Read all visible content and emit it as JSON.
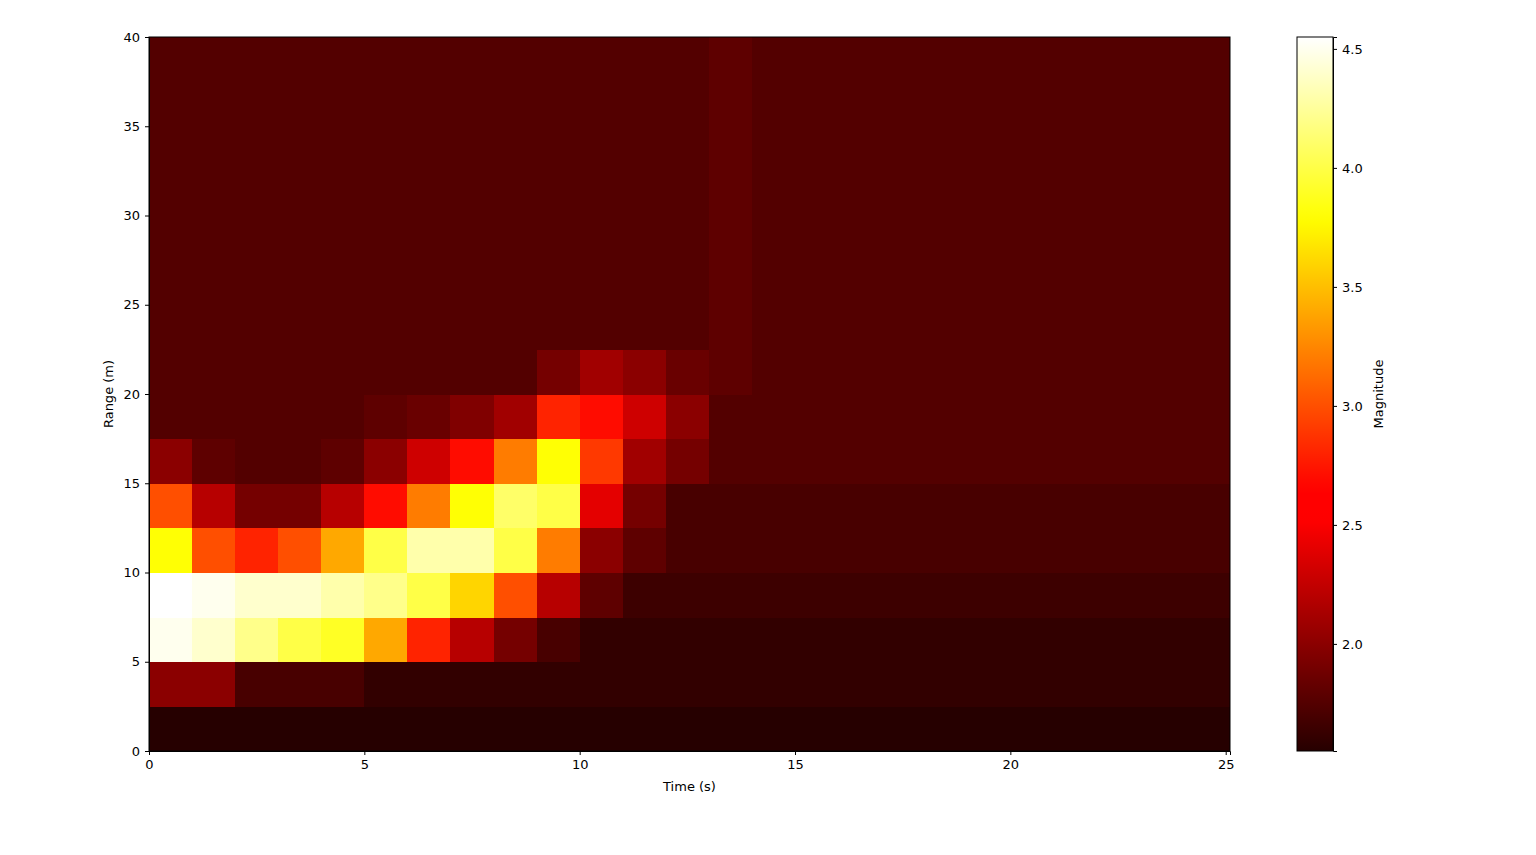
{
  "chart_data": {
    "type": "heatmap",
    "x_label": "Time (s)",
    "y_label": "Range (m)",
    "xlim": [
      0,
      25.1
    ],
    "ylim": [
      0,
      40
    ],
    "xticks": [
      0,
      5,
      10,
      15,
      20,
      25
    ],
    "yticks": [
      0,
      5,
      10,
      15,
      20,
      25,
      30,
      35,
      40
    ],
    "x_edges": [
      0,
      1,
      2,
      3,
      4,
      5,
      6,
      7,
      8,
      9,
      10,
      11,
      12,
      13,
      14,
      15,
      16,
      17,
      18,
      19,
      20,
      21,
      22,
      23,
      24,
      25.1
    ],
    "y_edges": [
      0,
      2.5,
      5,
      7.5,
      10,
      12.5,
      15,
      17.5,
      20,
      22.5,
      25,
      27.5,
      30,
      32.5,
      35,
      37.5,
      40
    ],
    "z": [
      [
        1.55,
        1.55,
        1.55,
        1.55,
        1.55,
        1.55,
        1.55,
        1.55,
        1.55,
        1.55,
        1.55,
        1.55,
        1.55,
        1.55,
        1.55,
        1.55,
        1.55,
        1.55,
        1.55,
        1.55,
        1.55,
        1.55,
        1.55,
        1.55,
        1.55
      ],
      [
        2.0,
        2.0,
        1.7,
        1.7,
        1.7,
        1.6,
        1.6,
        1.6,
        1.6,
        1.6,
        1.6,
        1.6,
        1.6,
        1.6,
        1.6,
        1.6,
        1.6,
        1.6,
        1.6,
        1.6,
        1.6,
        1.6,
        1.6,
        1.6,
        1.6
      ],
      [
        4.5,
        4.4,
        4.2,
        4.0,
        3.9,
        3.4,
        2.8,
        2.2,
        1.9,
        1.7,
        1.6,
        1.6,
        1.6,
        1.6,
        1.6,
        1.6,
        1.6,
        1.6,
        1.6,
        1.6,
        1.6,
        1.6,
        1.6,
        1.6,
        1.6
      ],
      [
        4.55,
        4.5,
        4.4,
        4.4,
        4.3,
        4.2,
        4.0,
        3.6,
        3.0,
        2.2,
        1.8,
        1.65,
        1.65,
        1.65,
        1.65,
        1.65,
        1.65,
        1.65,
        1.65,
        1.65,
        1.65,
        1.65,
        1.65,
        1.65,
        1.65
      ],
      [
        3.8,
        3.0,
        2.8,
        3.0,
        3.4,
        4.0,
        4.3,
        4.3,
        4.0,
        3.2,
        2.0,
        1.8,
        1.7,
        1.7,
        1.7,
        1.7,
        1.7,
        1.7,
        1.7,
        1.7,
        1.7,
        1.7,
        1.7,
        1.7,
        1.7
      ],
      [
        3.0,
        2.2,
        1.9,
        1.9,
        2.2,
        2.7,
        3.2,
        3.8,
        4.1,
        4.0,
        2.4,
        1.9,
        1.7,
        1.7,
        1.7,
        1.7,
        1.7,
        1.7,
        1.7,
        1.7,
        1.7,
        1.7,
        1.7,
        1.7,
        1.7
      ],
      [
        2.0,
        1.8,
        1.75,
        1.75,
        1.8,
        2.0,
        2.3,
        2.7,
        3.2,
        3.8,
        2.9,
        2.1,
        1.9,
        1.75,
        1.75,
        1.75,
        1.75,
        1.75,
        1.75,
        1.75,
        1.75,
        1.75,
        1.75,
        1.75,
        1.75
      ],
      [
        1.75,
        1.75,
        1.75,
        1.75,
        1.75,
        1.8,
        1.85,
        1.95,
        2.1,
        2.8,
        2.7,
        2.3,
        2.0,
        1.75,
        1.75,
        1.75,
        1.75,
        1.75,
        1.75,
        1.75,
        1.75,
        1.75,
        1.75,
        1.75,
        1.75
      ],
      [
        1.75,
        1.75,
        1.75,
        1.75,
        1.75,
        1.75,
        1.75,
        1.75,
        1.75,
        1.9,
        2.1,
        2.0,
        1.85,
        1.8,
        1.75,
        1.75,
        1.75,
        1.75,
        1.75,
        1.75,
        1.75,
        1.75,
        1.75,
        1.75,
        1.75
      ],
      [
        1.75,
        1.75,
        1.75,
        1.75,
        1.75,
        1.75,
        1.75,
        1.75,
        1.75,
        1.75,
        1.75,
        1.75,
        1.75,
        1.8,
        1.75,
        1.75,
        1.75,
        1.75,
        1.75,
        1.75,
        1.75,
        1.75,
        1.75,
        1.75,
        1.75
      ],
      [
        1.75,
        1.75,
        1.75,
        1.75,
        1.75,
        1.75,
        1.75,
        1.75,
        1.75,
        1.75,
        1.75,
        1.75,
        1.75,
        1.8,
        1.75,
        1.75,
        1.75,
        1.75,
        1.75,
        1.75,
        1.75,
        1.75,
        1.75,
        1.75,
        1.75
      ],
      [
        1.75,
        1.75,
        1.75,
        1.75,
        1.75,
        1.75,
        1.75,
        1.75,
        1.75,
        1.75,
        1.75,
        1.75,
        1.75,
        1.8,
        1.75,
        1.75,
        1.75,
        1.75,
        1.75,
        1.75,
        1.75,
        1.75,
        1.75,
        1.75,
        1.75
      ],
      [
        1.75,
        1.75,
        1.75,
        1.75,
        1.75,
        1.75,
        1.75,
        1.75,
        1.75,
        1.75,
        1.75,
        1.75,
        1.75,
        1.8,
        1.75,
        1.75,
        1.75,
        1.75,
        1.75,
        1.75,
        1.75,
        1.75,
        1.75,
        1.75,
        1.75
      ],
      [
        1.75,
        1.75,
        1.75,
        1.75,
        1.75,
        1.75,
        1.75,
        1.75,
        1.75,
        1.75,
        1.75,
        1.75,
        1.75,
        1.8,
        1.75,
        1.75,
        1.75,
        1.75,
        1.75,
        1.75,
        1.75,
        1.75,
        1.75,
        1.75,
        1.75
      ],
      [
        1.75,
        1.75,
        1.75,
        1.75,
        1.75,
        1.75,
        1.75,
        1.75,
        1.75,
        1.75,
        1.75,
        1.75,
        1.75,
        1.8,
        1.75,
        1.75,
        1.75,
        1.75,
        1.75,
        1.75,
        1.75,
        1.75,
        1.75,
        1.75,
        1.75
      ],
      [
        1.75,
        1.75,
        1.75,
        1.75,
        1.75,
        1.75,
        1.75,
        1.75,
        1.75,
        1.75,
        1.75,
        1.75,
        1.75,
        1.8,
        1.75,
        1.75,
        1.75,
        1.75,
        1.75,
        1.75,
        1.75,
        1.75,
        1.75,
        1.75,
        1.75
      ]
    ],
    "colorbar": {
      "label": "Magnitude",
      "range": [
        1.55,
        4.55
      ],
      "ticks": [
        {
          "value": 2,
          "label": "2.0"
        },
        {
          "value": 2.5,
          "label": "2.5"
        },
        {
          "value": 3,
          "label": "3.0"
        },
        {
          "value": 3.5,
          "label": "3.5"
        },
        {
          "value": 4,
          "label": "4.0"
        },
        {
          "value": 4.5,
          "label": "4.5"
        }
      ]
    }
  }
}
